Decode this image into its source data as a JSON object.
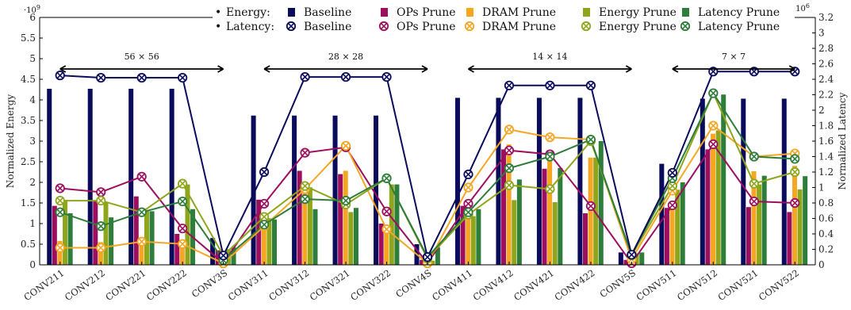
{
  "chart_data": {
    "type": "bar+line",
    "categories": [
      "CONV211",
      "CONV212",
      "CONV221",
      "CONV222",
      "CONV3S",
      "CONV311",
      "CONV312",
      "CONV321",
      "CONV322",
      "CONV4S",
      "CONV411",
      "CONV412",
      "CONV421",
      "CONV422",
      "CONV5S",
      "CONV511",
      "CONV512",
      "CONV521",
      "CONV522"
    ],
    "energy_axis": {
      "label": "Normalized Energy",
      "exponent": "·10",
      "exponent_power": "9",
      "ylim": [
        0,
        6
      ],
      "ticks": [
        "0",
        "0.5",
        "1",
        "1.5",
        "2",
        "2.5",
        "3",
        "3.5",
        "4",
        "4.5",
        "5",
        "5.5",
        "6"
      ]
    },
    "latency_axis": {
      "label": "Normalized Latency",
      "exponent": "·10",
      "exponent_power": "6",
      "ylim": [
        0,
        3.2
      ],
      "ticks": [
        "0",
        "0.2",
        "0.4",
        "0.6",
        "0.8",
        "1",
        "1.2",
        "1.4",
        "1.6",
        "1.8",
        "2",
        "2.2",
        "2.4",
        "2.6",
        "2.8",
        "3",
        "3.2"
      ]
    },
    "legend": {
      "energy_prefix": "Energy:",
      "latency_prefix": "Latency:",
      "bullet": "•"
    },
    "energy_series": [
      {
        "name": "Baseline",
        "color": "#0b0b5c",
        "values": [
          4.27,
          4.27,
          4.27,
          4.27,
          0.65,
          3.62,
          3.62,
          3.62,
          3.62,
          0.5,
          4.05,
          4.05,
          4.05,
          4.05,
          0.3,
          2.45,
          4.03,
          4.03,
          4.03
        ]
      },
      {
        "name": "OPs Prune",
        "color": "#9c0f5f",
        "values": [
          1.43,
          1.55,
          1.66,
          0.75,
          0.35,
          1.58,
          2.28,
          2.2,
          1.0,
          0.12,
          1.43,
          2.8,
          2.33,
          1.25,
          0.12,
          1.38,
          2.8,
          1.4,
          1.28
        ]
      },
      {
        "name": "DRAM Prune",
        "color": "#f5a623",
        "values": [
          0.58,
          0.55,
          0.63,
          0.55,
          0.1,
          1.0,
          1.73,
          2.28,
          0.82,
          0.05,
          1.58,
          2.92,
          2.56,
          2.6,
          0.25,
          1.5,
          3.18,
          2.27,
          2.4
        ]
      },
      {
        "name": "Energy Prune",
        "color": "#8fa61c",
        "values": [
          1.57,
          1.53,
          1.33,
          1.95,
          0.38,
          1.13,
          1.88,
          1.28,
          1.95,
          0.1,
          1.18,
          1.57,
          1.52,
          2.6,
          0.28,
          1.82,
          3.26,
          1.95,
          1.83
        ]
      },
      {
        "name": "Latency Prune",
        "color": "#2e7d3a",
        "values": [
          1.25,
          1.15,
          1.3,
          1.35,
          0.42,
          1.1,
          1.35,
          1.38,
          1.95,
          0.42,
          1.35,
          2.07,
          2.35,
          3.0,
          0.3,
          2.0,
          4.13,
          2.16,
          2.15
        ]
      }
    ],
    "latency_series": [
      {
        "name": "Baseline",
        "color": "#0b0b5c",
        "values": [
          2.45,
          2.42,
          2.42,
          2.42,
          0.12,
          1.2,
          2.43,
          2.43,
          2.43,
          0.1,
          1.17,
          2.32,
          2.32,
          2.32,
          0.13,
          1.19,
          2.5,
          2.5,
          2.5
        ]
      },
      {
        "name": "OPs Prune",
        "color": "#9c0f5f",
        "values": [
          0.99,
          0.94,
          1.14,
          0.47,
          0.02,
          0.79,
          1.45,
          1.52,
          0.69,
          0.02,
          0.79,
          1.48,
          1.43,
          0.76,
          0.02,
          0.77,
          1.56,
          0.82,
          0.8
        ]
      },
      {
        "name": "DRAM Prune",
        "color": "#f5a623",
        "values": [
          0.22,
          0.22,
          0.3,
          0.27,
          0.02,
          0.5,
          0.98,
          1.54,
          0.46,
          0.02,
          1.0,
          1.75,
          1.65,
          1.62,
          0.07,
          0.96,
          1.8,
          1.4,
          1.44
        ]
      },
      {
        "name": "Energy Prune",
        "color": "#8fa61c",
        "values": [
          0.83,
          0.83,
          0.68,
          1.05,
          0.12,
          0.62,
          1.02,
          0.78,
          1.12,
          0.08,
          0.65,
          1.03,
          0.98,
          1.6,
          0.12,
          1.02,
          2.22,
          1.05,
          1.2
        ]
      },
      {
        "name": "Latency Prune",
        "color": "#2e7d3a",
        "values": [
          0.68,
          0.5,
          0.68,
          0.82,
          0.06,
          0.52,
          0.85,
          0.83,
          1.12,
          0.1,
          0.68,
          1.25,
          1.4,
          1.62,
          0.13,
          1.12,
          2.22,
          1.4,
          1.37
        ]
      }
    ],
    "group_annotations": [
      {
        "label": "56 × 56",
        "from": 0,
        "to": 4,
        "y": 4.75
      },
      {
        "label": "28 × 28",
        "from": 5,
        "to": 9,
        "y": 4.75
      },
      {
        "label": "14 × 14",
        "from": 10,
        "to": 14,
        "y": 4.75
      },
      {
        "label": "7 × 7",
        "from": 15,
        "to": 18,
        "y": 4.75
      }
    ],
    "grid": false
  }
}
